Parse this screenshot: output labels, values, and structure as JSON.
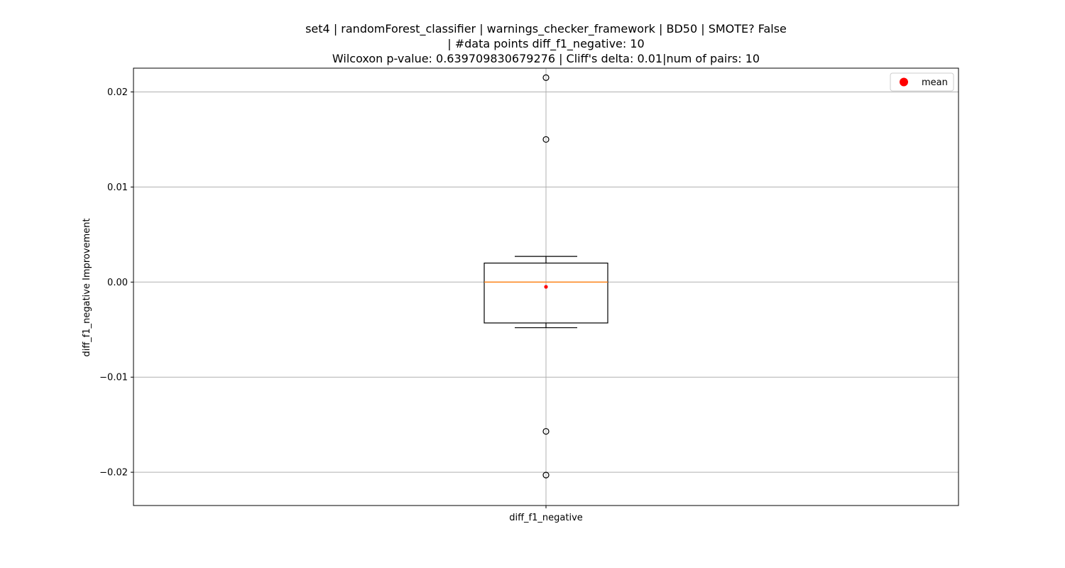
{
  "chart_data": {
    "type": "box",
    "title_lines": [
      "set4 | randomForest_classifier | warnings_checker_framework | BD50 | SMOTE? False",
      "| #data points diff_f1_negative: 10",
      "Wilcoxon p-value: 0.639709830679276 | Cliff's delta: 0.01|num of pairs: 10"
    ],
    "xlabel": "",
    "ylabel": "diff_f1_negative Improvement",
    "categories": [
      "diff_f1_negative"
    ],
    "ylim": [
      -0.0235,
      0.0225
    ],
    "yticks": [
      -0.02,
      -0.01,
      0.0,
      0.01,
      0.02
    ],
    "ytick_labels": [
      "−0.02",
      "−0.01",
      "0.00",
      "0.01",
      "0.02"
    ],
    "grid": true,
    "legend": {
      "position": "top-right",
      "entries": [
        {
          "label": "mean",
          "color": "#ff0000"
        }
      ]
    },
    "box": {
      "whisker_low": -0.0048,
      "q1": -0.0043,
      "median": 0.0,
      "q3": 0.002,
      "whisker_high": 0.0027,
      "mean": -0.0005,
      "outliers": [
        0.0215,
        0.015,
        -0.0157,
        -0.0203
      ]
    },
    "colors": {
      "median": "#ff7f0e",
      "mean": "#ff0000",
      "grid": "#b0b0b0"
    }
  }
}
